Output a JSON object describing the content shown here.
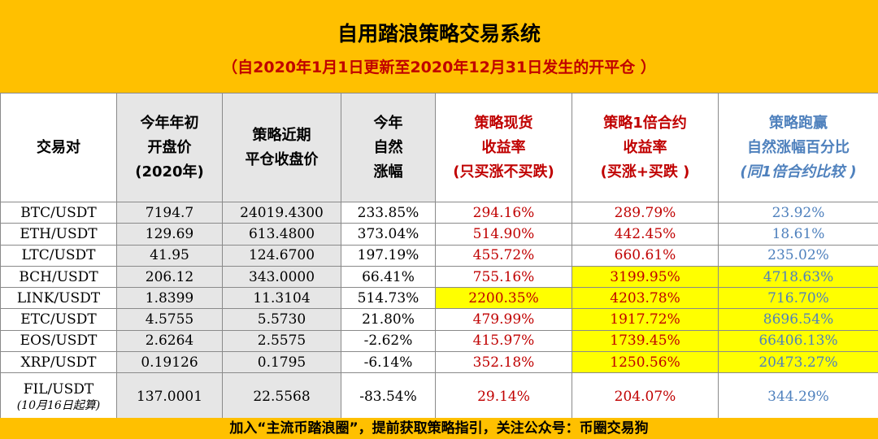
{
  "header": {
    "title": "自用踏浪策略交易系统",
    "subtitle": "（自2020年1月1日更新至2020年12月31日发生的开平仓 ）"
  },
  "columns": [
    {
      "lines": [
        "交易对"
      ]
    },
    {
      "lines": [
        "今年年初",
        "开盘价",
        "(2020年)"
      ]
    },
    {
      "lines": [
        "策略近期",
        "平仓收盘价"
      ]
    },
    {
      "lines": [
        "今年",
        "自然",
        "涨幅"
      ]
    },
    {
      "lines": [
        "策略现货",
        "收益率",
        "(只买涨不买跌)"
      ]
    },
    {
      "lines": [
        "策略1倍合约",
        "收益率",
        "(买涨+买跌 )"
      ]
    },
    {
      "lines": [
        "策略跑赢",
        "自然涨幅百分比",
        "(同1倍合约比较 )"
      ]
    }
  ],
  "rows": [
    {
      "pair": "BTC/USDT",
      "open": "7194.7",
      "close": "24019.4300",
      "natural": "233.85%",
      "spot": "294.16%",
      "contract": "289.79%",
      "beat": "23.92%"
    },
    {
      "pair": "ETH/USDT",
      "open": "129.69",
      "close": "613.4800",
      "natural": "373.04%",
      "spot": "514.90%",
      "contract": "442.45%",
      "beat": "18.61%"
    },
    {
      "pair": "LTC/USDT",
      "open": "41.95",
      "close": "124.6700",
      "natural": "197.19%",
      "spot": "455.72%",
      "contract": "660.61%",
      "beat": "235.02%"
    },
    {
      "pair": "BCH/USDT",
      "open": "206.12",
      "close": "343.0000",
      "natural": "66.41%",
      "spot": "755.16%",
      "contract": "3199.95%",
      "beat": "4718.63%"
    },
    {
      "pair": "LINK/USDT",
      "open": "1.8399",
      "close": "11.3104",
      "natural": "514.73%",
      "spot": "2200.35%",
      "contract": "4203.78%",
      "beat": "716.70%"
    },
    {
      "pair": "ETC/USDT",
      "open": "4.5755",
      "close": "5.5730",
      "natural": "21.80%",
      "spot": "479.99%",
      "contract": "1917.72%",
      "beat": "8696.54%"
    },
    {
      "pair": "EOS/USDT",
      "open": "2.6264",
      "close": "2.5575",
      "natural": "-2.62%",
      "spot": "415.97%",
      "contract": "1739.45%",
      "beat": "66406.13%"
    },
    {
      "pair": "XRP/USDT",
      "open": "0.19126",
      "close": "0.1795",
      "natural": "-6.14%",
      "spot": "352.18%",
      "contract": "1250.56%",
      "beat": "20473.27%"
    },
    {
      "pair": "FIL/USDT",
      "pair_note": "(10月16日起算)",
      "open": "137.0001",
      "close": "22.5568",
      "natural": "-83.54%",
      "spot": "29.14%",
      "contract": "204.07%",
      "beat": "344.29%"
    }
  ],
  "footer": "加入“主流币踏浪圈”，提前获取策略指引，关注公众号：币圈交易狗",
  "colors": {
    "header_bg": "#ffc000",
    "red": "#c00000",
    "blue": "#4f81bd",
    "highlight": "#ffff00",
    "gray": "#e6e6e6"
  }
}
